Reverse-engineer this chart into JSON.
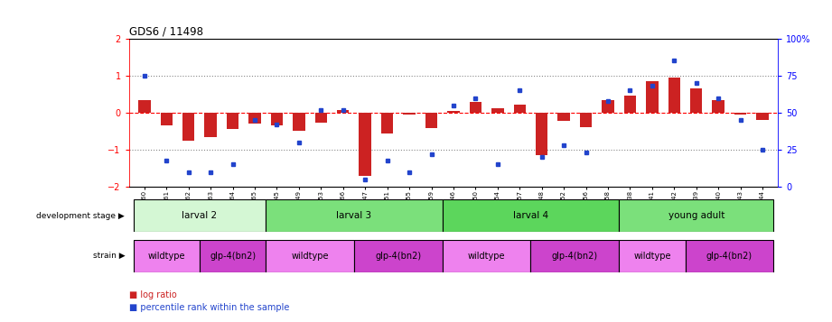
{
  "title": "GDS6 / 11498",
  "samples": [
    "GSM460",
    "GSM461",
    "GSM462",
    "GSM463",
    "GSM464",
    "GSM465",
    "GSM445",
    "GSM449",
    "GSM453",
    "GSM466",
    "GSM447",
    "GSM451",
    "GSM455",
    "GSM459",
    "GSM446",
    "GSM450",
    "GSM454",
    "GSM457",
    "GSM448",
    "GSM452",
    "GSM456",
    "GSM458",
    "GSM438",
    "GSM441",
    "GSM442",
    "GSM439",
    "GSM440",
    "GSM443",
    "GSM444"
  ],
  "log_ratio": [
    0.35,
    -0.35,
    -0.75,
    -0.65,
    -0.45,
    -0.3,
    -0.35,
    -0.5,
    -0.28,
    0.08,
    -1.7,
    -0.55,
    -0.05,
    -0.42,
    0.05,
    0.28,
    0.12,
    0.22,
    -1.15,
    -0.22,
    -0.38,
    0.35,
    0.45,
    0.85,
    0.95,
    0.65,
    0.35,
    -0.05,
    -0.2
  ],
  "percentile": [
    75,
    18,
    10,
    10,
    15,
    45,
    42,
    30,
    52,
    52,
    5,
    18,
    10,
    22,
    55,
    60,
    15,
    65,
    20,
    28,
    23,
    58,
    65,
    68,
    85,
    70,
    60,
    45,
    25
  ],
  "dev_stage_groups": [
    {
      "label": "larval 2",
      "start": 0,
      "end": 6,
      "color": "#d4f7d4"
    },
    {
      "label": "larval 3",
      "start": 6,
      "end": 14,
      "color": "#7be07b"
    },
    {
      "label": "larval 4",
      "start": 14,
      "end": 22,
      "color": "#5cd65c"
    },
    {
      "label": "young adult",
      "start": 22,
      "end": 29,
      "color": "#7be07b"
    }
  ],
  "strain_groups": [
    {
      "label": "wildtype",
      "start": 0,
      "end": 3,
      "color": "#ee82ee"
    },
    {
      "label": "glp-4(bn2)",
      "start": 3,
      "end": 6,
      "color": "#cc44cc"
    },
    {
      "label": "wildtype",
      "start": 6,
      "end": 10,
      "color": "#ee82ee"
    },
    {
      "label": "glp-4(bn2)",
      "start": 10,
      "end": 14,
      "color": "#cc44cc"
    },
    {
      "label": "wildtype",
      "start": 14,
      "end": 18,
      "color": "#ee82ee"
    },
    {
      "label": "glp-4(bn2)",
      "start": 18,
      "end": 22,
      "color": "#cc44cc"
    },
    {
      "label": "wildtype",
      "start": 22,
      "end": 25,
      "color": "#ee82ee"
    },
    {
      "label": "glp-4(bn2)",
      "start": 25,
      "end": 29,
      "color": "#cc44cc"
    }
  ],
  "bar_color": "#cc2222",
  "dot_color": "#2244cc",
  "ylim": [
    -2,
    2
  ],
  "y2lim": [
    0,
    100
  ],
  "yticks_left": [
    -2,
    -1,
    0,
    1,
    2
  ],
  "yticks_right": [
    0,
    25,
    50,
    75,
    100
  ],
  "ytick_labels_right": [
    "0",
    "25",
    "50",
    "75",
    "100%"
  ],
  "background_color": "#ffffff"
}
